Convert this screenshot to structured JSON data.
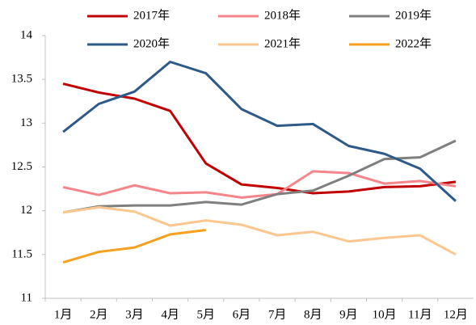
{
  "chart_data": {
    "type": "line",
    "categories": [
      "1月",
      "2月",
      "3月",
      "4月",
      "5月",
      "6月",
      "7月",
      "8月",
      "9月",
      "10月",
      "11月",
      "12月"
    ],
    "series": [
      {
        "name": "2017年",
        "color": "#c00000",
        "values": [
          13.45,
          13.35,
          13.28,
          13.14,
          12.54,
          12.3,
          12.26,
          12.2,
          12.22,
          12.27,
          12.28,
          12.33
        ]
      },
      {
        "name": "2018年",
        "color": "#f4858a",
        "values": [
          12.27,
          12.18,
          12.29,
          12.2,
          12.21,
          12.15,
          12.19,
          12.45,
          12.43,
          12.31,
          12.34,
          12.28
        ]
      },
      {
        "name": "2019年",
        "color": "#7f7f7f",
        "values": [
          11.98,
          12.05,
          12.06,
          12.06,
          12.1,
          12.07,
          12.19,
          12.23,
          12.4,
          12.59,
          12.61,
          12.8
        ]
      },
      {
        "name": "2020年",
        "color": "#2e5a8a",
        "values": [
          12.9,
          13.22,
          13.36,
          13.7,
          13.57,
          13.16,
          12.97,
          12.99,
          12.74,
          12.65,
          12.48,
          12.11
        ]
      },
      {
        "name": "2021年",
        "color": "#fbc78f",
        "values": [
          11.98,
          12.04,
          11.99,
          11.83,
          11.89,
          11.84,
          11.72,
          11.76,
          11.65,
          11.69,
          11.72,
          11.5
        ]
      },
      {
        "name": "2022年",
        "color": "#f5a11f",
        "values": [
          11.41,
          11.53,
          11.58,
          11.73,
          11.78,
          null,
          null,
          null,
          null,
          null,
          null,
          null
        ]
      }
    ],
    "ylim": [
      11,
      14
    ],
    "yticks": [
      11,
      11.5,
      12,
      12.5,
      13,
      13.5,
      14
    ],
    "grid": false
  }
}
